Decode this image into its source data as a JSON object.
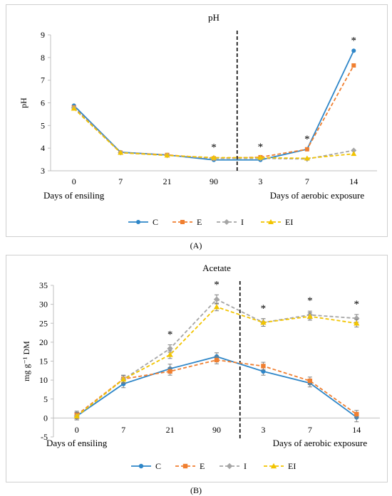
{
  "panels": {
    "a_label": "(A)",
    "b_label": "(B)"
  },
  "chart_data": [
    {
      "type": "line",
      "title": "pH",
      "ylabel": "pH",
      "ylim": [
        3,
        9
      ],
      "yticks": [
        3,
        4,
        5,
        6,
        7,
        8,
        9
      ],
      "categories": [
        "0",
        "7",
        "21",
        "90",
        "3",
        "7",
        "14"
      ],
      "group_labels": [
        "Days of ensiling",
        "Days of aerobic exposure"
      ],
      "divider_after_index": 3,
      "significance": [
        "",
        "",
        "",
        "*",
        "*",
        "*",
        "*"
      ],
      "legend_position": "bottom",
      "series": [
        {
          "name": "C",
          "color": "#2e86c8",
          "dash": "solid",
          "marker": "circle",
          "values": [
            5.88,
            3.82,
            3.7,
            3.48,
            3.48,
            3.95,
            8.3
          ],
          "errors": [
            0,
            0,
            0,
            0,
            0,
            0,
            0
          ]
        },
        {
          "name": "E",
          "color": "#f07f30",
          "dash": "dashed",
          "marker": "square",
          "values": [
            5.8,
            3.8,
            3.7,
            3.55,
            3.6,
            3.95,
            7.65
          ],
          "errors": [
            0,
            0,
            0,
            0,
            0,
            0,
            0
          ]
        },
        {
          "name": "I",
          "color": "#a5a5a5",
          "dash": "dashed",
          "marker": "diamond",
          "values": [
            5.78,
            3.8,
            3.68,
            3.55,
            3.55,
            3.52,
            3.9
          ],
          "errors": [
            0,
            0,
            0,
            0,
            0,
            0,
            0
          ]
        },
        {
          "name": "EI",
          "color": "#f2c400",
          "dash": "dashed",
          "marker": "triangle",
          "values": [
            5.75,
            3.8,
            3.68,
            3.58,
            3.58,
            3.55,
            3.75
          ],
          "errors": [
            0,
            0,
            0,
            0,
            0,
            0,
            0
          ]
        }
      ]
    },
    {
      "type": "line",
      "title": "Acetate",
      "ylabel": "mg g⁻¹ DM",
      "ylim": [
        -5,
        35
      ],
      "yticks": [
        -5,
        0,
        5,
        10,
        15,
        20,
        25,
        30,
        35
      ],
      "categories": [
        "0",
        "7",
        "21",
        "90",
        "3",
        "7",
        "14"
      ],
      "group_labels": [
        "Days of ensiling",
        "Days of aerobic exposure"
      ],
      "divider_after_index": 3,
      "significance": [
        "",
        "",
        "*",
        "*",
        "*",
        "*",
        "*"
      ],
      "legend_position": "bottom",
      "series": [
        {
          "name": "C",
          "color": "#2e86c8",
          "dash": "solid",
          "marker": "circle",
          "values": [
            0.5,
            9.0,
            13.0,
            16.2,
            12.3,
            9.2,
            0.2
          ],
          "errors": [
            1.0,
            1.0,
            1.2,
            1.0,
            1.0,
            1.0,
            1.2
          ]
        },
        {
          "name": "E",
          "color": "#f07f30",
          "dash": "dashed",
          "marker": "square",
          "values": [
            0.8,
            10.3,
            12.3,
            15.3,
            13.7,
            9.8,
            1.0
          ],
          "errors": [
            1.0,
            1.0,
            1.0,
            1.0,
            1.0,
            1.0,
            1.0
          ]
        },
        {
          "name": "I",
          "color": "#a5a5a5",
          "dash": "dashed",
          "marker": "diamond",
          "values": [
            0.5,
            10.2,
            18.3,
            31.3,
            25.2,
            27.2,
            26.3
          ],
          "errors": [
            1.0,
            1.0,
            1.0,
            1.2,
            1.0,
            1.0,
            1.0
          ]
        },
        {
          "name": "EI",
          "color": "#f2c400",
          "dash": "dashed",
          "marker": "triangle",
          "values": [
            0.5,
            10.2,
            16.7,
            29.3,
            25.2,
            26.8,
            25.0
          ],
          "errors": [
            1.0,
            1.0,
            1.0,
            1.0,
            1.0,
            1.0,
            1.0
          ]
        }
      ]
    }
  ]
}
